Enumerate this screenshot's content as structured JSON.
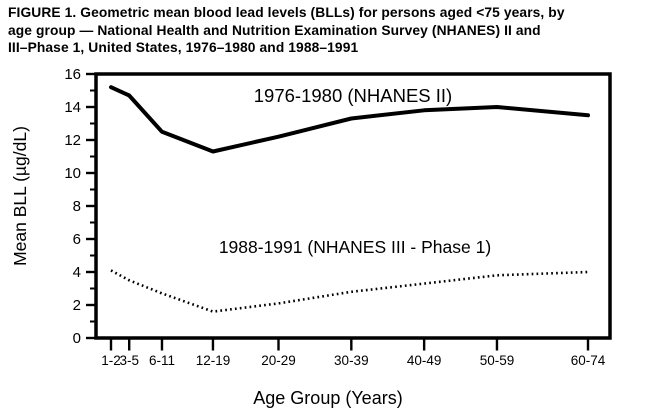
{
  "figure": {
    "title_lines": [
      "FIGURE 1. Geometric mean blood lead levels (BLLs) for persons aged <75 years, by",
      "age group — National Health and Nutrition Examination Survey (NHANES) II and",
      "III–Phase 1, United States, 1976–1980 and 1988–1991"
    ]
  },
  "chart_data": {
    "type": "line",
    "title": "",
    "categories": [
      "1-2",
      "3-5",
      "6-11",
      "12-19",
      "20-29",
      "30-39",
      "40-49",
      "50-59",
      "60-74"
    ],
    "age_midpoints": [
      1.5,
      4,
      8.5,
      15.5,
      24.5,
      34.5,
      44.5,
      54.5,
      67
    ],
    "series": [
      {
        "name": "1976-1980 (NHANES II)",
        "style": "solid",
        "values": [
          15.2,
          14.7,
          12.5,
          11.3,
          12.2,
          13.3,
          13.8,
          14.0,
          13.5
        ]
      },
      {
        "name": "1988-1991 (NHANES III - Phase 1)",
        "style": "dotted",
        "values": [
          4.1,
          3.5,
          2.7,
          1.6,
          2.1,
          2.8,
          3.3,
          3.8,
          4.0
        ]
      }
    ],
    "xlabel": "Age Group (Years)",
    "ylabel": "Mean BLL (µg/dL)",
    "ylim": [
      0,
      16
    ],
    "ytick_step": 2,
    "yminor_step": 1,
    "grid": false,
    "legend_position": "inline-labels"
  },
  "colors": {
    "ink": "#000000",
    "background": "#ffffff"
  }
}
